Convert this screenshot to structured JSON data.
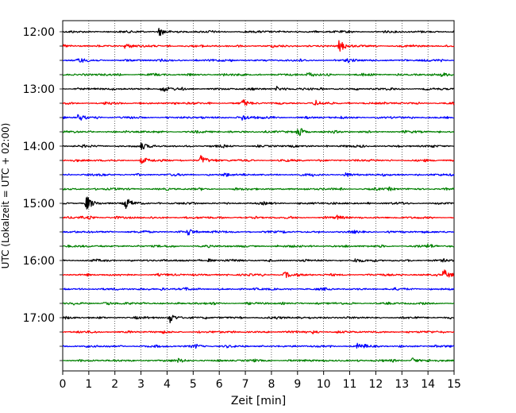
{
  "chart_data": {
    "type": "line",
    "chart_kind": "helicorder",
    "xlabel": "Zeit  [min]",
    "ylabel": "UTC (Lokalzeit = UTC + 02:00)",
    "xlim": [
      0,
      15
    ],
    "xticks": [
      "0",
      "1",
      "2",
      "3",
      "4",
      "5",
      "6",
      "7",
      "8",
      "9",
      "10",
      "11",
      "12",
      "13",
      "14",
      "15"
    ],
    "yticks": [
      "12:00",
      "13:00",
      "14:00",
      "15:00",
      "16:00",
      "17:00"
    ],
    "x_grid": "dotted vertical lines at each minute",
    "trace_colors_cycle": [
      "#000000",
      "#ff0000",
      "#0000ff",
      "#008000"
    ],
    "traces_per_hour": 4,
    "minutes_per_trace": 15,
    "traces": [
      {
        "start": "12:00",
        "events": [
          {
            "t": 3.7,
            "amp": 0.8
          }
        ]
      },
      {
        "start": "12:15",
        "events": [
          {
            "t": 2.4,
            "amp": 0.5
          },
          {
            "t": 10.6,
            "amp": 1.0
          }
        ]
      },
      {
        "start": "12:30",
        "events": [
          {
            "t": 0.6,
            "amp": 0.4
          },
          {
            "t": 10.9,
            "amp": 0.3
          }
        ]
      },
      {
        "start": "12:45",
        "events": [
          {
            "t": 9.4,
            "amp": 0.45
          },
          {
            "t": 14.5,
            "amp": 0.35
          }
        ]
      },
      {
        "start": "13:00",
        "events": [
          {
            "t": 3.8,
            "amp": 0.6
          },
          {
            "t": 8.2,
            "amp": 0.45
          }
        ]
      },
      {
        "start": "13:15",
        "events": [
          {
            "t": 6.9,
            "amp": 0.5
          },
          {
            "t": 9.7,
            "amp": 0.35
          }
        ]
      },
      {
        "start": "13:30",
        "events": [
          {
            "t": 0.6,
            "amp": 0.7
          },
          {
            "t": 6.9,
            "amp": 0.65
          }
        ]
      },
      {
        "start": "13:45",
        "events": [
          {
            "t": 9.0,
            "amp": 1.1
          }
        ]
      },
      {
        "start": "14:00",
        "events": [
          {
            "t": 3.0,
            "amp": 0.6
          }
        ]
      },
      {
        "start": "14:15",
        "events": [
          {
            "t": 3.0,
            "amp": 0.5
          },
          {
            "t": 5.3,
            "amp": 0.9
          }
        ]
      },
      {
        "start": "14:30",
        "events": [
          {
            "t": 6.2,
            "amp": 0.3
          },
          {
            "t": 10.8,
            "amp": 0.3
          }
        ]
      },
      {
        "start": "14:45",
        "events": [
          {
            "t": 12.5,
            "amp": 0.25
          }
        ]
      },
      {
        "start": "15:00",
        "events": [
          {
            "t": 0.9,
            "amp": 1.4
          },
          {
            "t": 2.4,
            "amp": 1.1
          }
        ]
      },
      {
        "start": "15:15",
        "events": [
          {
            "t": 1.0,
            "amp": 0.35
          },
          {
            "t": 10.5,
            "amp": 0.3
          }
        ]
      },
      {
        "start": "15:30",
        "events": [
          {
            "t": 4.8,
            "amp": 0.7
          }
        ]
      },
      {
        "start": "15:45",
        "events": [
          {
            "t": 14.0,
            "amp": 0.35
          }
        ]
      },
      {
        "start": "16:00",
        "events": [
          {
            "t": 5.6,
            "amp": 0.3
          },
          {
            "t": 11.2,
            "amp": 0.3
          }
        ]
      },
      {
        "start": "16:15",
        "events": [
          {
            "t": 8.5,
            "amp": 0.65
          },
          {
            "t": 14.6,
            "amp": 1.0
          }
        ]
      },
      {
        "start": "16:30",
        "events": [
          {
            "t": 3.7,
            "amp": 0.35
          }
        ]
      },
      {
        "start": "16:45",
        "events": [
          {
            "t": 1.6,
            "amp": 0.3
          }
        ]
      },
      {
        "start": "17:00",
        "events": [
          {
            "t": 4.1,
            "amp": 1.0
          },
          {
            "t": 9.0,
            "amp": 0.3
          }
        ]
      },
      {
        "start": "17:15",
        "events": [
          {
            "t": 9.6,
            "amp": 0.3
          }
        ]
      },
      {
        "start": "17:30",
        "events": [
          {
            "t": 5.1,
            "amp": 0.35
          },
          {
            "t": 11.3,
            "amp": 0.4
          }
        ]
      },
      {
        "start": "17:45",
        "events": [
          {
            "t": 4.4,
            "amp": 0.3
          },
          {
            "t": 13.4,
            "amp": 0.55
          }
        ]
      }
    ]
  }
}
